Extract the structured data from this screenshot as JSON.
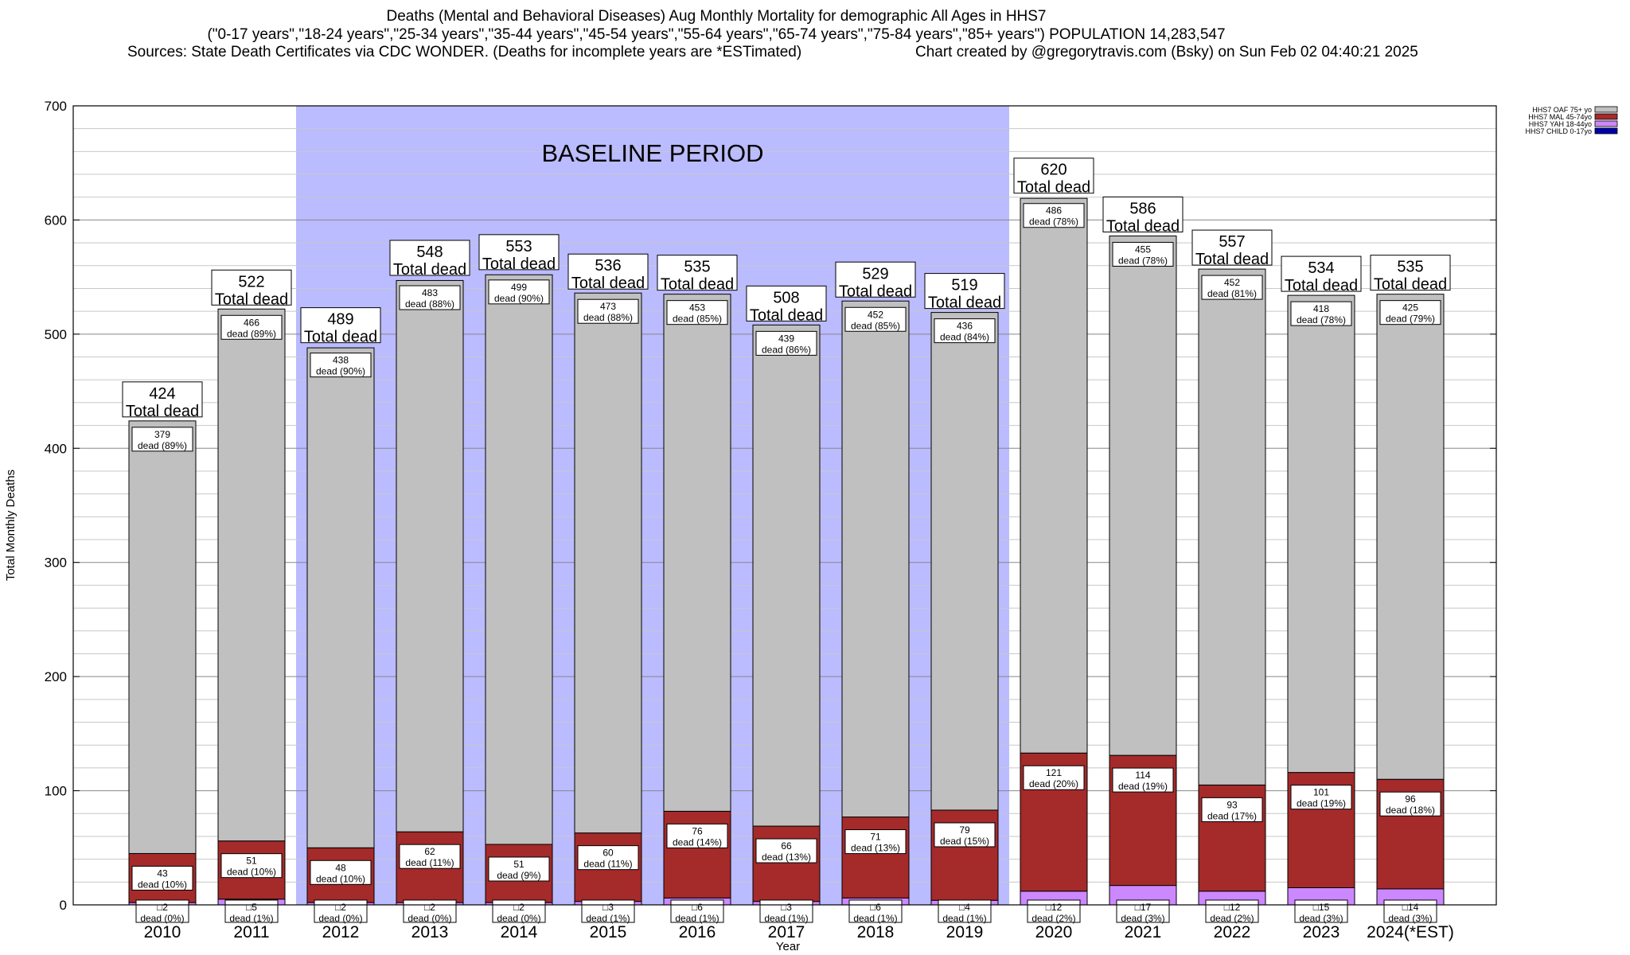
{
  "header": {
    "title": "Deaths (Mental and Behavioral Diseases) Aug Monthly Mortality for demographic All Ages in HHS7",
    "subtitle": "(\"0-17 years\",\"18-24 years\",\"25-34 years\",\"35-44 years\",\"45-54 years\",\"55-64 years\",\"65-74 years\",\"75-84 years\",\"85+ years\") POPULATION 14,283,547",
    "sources": "Sources: State Death Certificates via CDC WONDER. (Deaths for incomplete years are *ESTimated)",
    "created": "Chart created by @gregorytravis.com (Bsky) on Sun Feb 02 04:40:21 2025"
  },
  "chart_data": {
    "type": "bar",
    "stacked": true,
    "xlabel": "Year",
    "ylabel": "Total Monthly Deaths",
    "ylim": [
      0,
      700
    ],
    "yticks": [
      0,
      100,
      200,
      300,
      400,
      500,
      600,
      700
    ],
    "grid": true,
    "legend_position": "top-right",
    "baseline_label": "BASELINE PERIOD",
    "baseline_range": [
      "2012",
      "2019"
    ],
    "total_suffix": "Total dead",
    "dead_prefix": "dead",
    "categories": [
      "2010",
      "2011",
      "2012",
      "2013",
      "2014",
      "2015",
      "2016",
      "2017",
      "2018",
      "2019",
      "2020",
      "2021",
      "2022",
      "2023",
      "2024(*EST)"
    ],
    "totals": [
      424,
      522,
      489,
      548,
      553,
      536,
      535,
      508,
      529,
      519,
      620,
      586,
      557,
      534,
      535
    ],
    "series": [
      {
        "name": "HHS7 CHILD 0-17yo",
        "color": "#0000aa",
        "values": [
          0,
          0,
          0,
          0,
          0,
          0,
          0,
          0,
          0,
          0,
          0,
          0,
          0,
          0,
          0
        ]
      },
      {
        "name": "HHS7 YAH 18-44yo",
        "color": "#cc88ff",
        "values": [
          2,
          5,
          2,
          2,
          2,
          3,
          6,
          3,
          6,
          4,
          12,
          17,
          12,
          15,
          14
        ],
        "percents": [
          "0%",
          "1%",
          "0%",
          "0%",
          "0%",
          "1%",
          "1%",
          "1%",
          "1%",
          "1%",
          "2%",
          "3%",
          "2%",
          "3%",
          "3%"
        ]
      },
      {
        "name": "HHS7 MAL 45-74yo",
        "color": "#a52a2a",
        "values": [
          43,
          51,
          48,
          62,
          51,
          60,
          76,
          66,
          71,
          79,
          121,
          114,
          93,
          101,
          96
        ],
        "percents": [
          "10%",
          "10%",
          "10%",
          "11%",
          "9%",
          "11%",
          "14%",
          "13%",
          "13%",
          "15%",
          "20%",
          "19%",
          "17%",
          "19%",
          "18%"
        ]
      },
      {
        "name": "HHS7 OAF 75+ yo",
        "color": "#c0c0c0",
        "values": [
          379,
          466,
          438,
          483,
          499,
          473,
          453,
          439,
          452,
          436,
          486,
          455,
          452,
          418,
          425
        ],
        "percents": [
          "89%",
          "89%",
          "90%",
          "88%",
          "90%",
          "88%",
          "85%",
          "86%",
          "85%",
          "84%",
          "78%",
          "78%",
          "81%",
          "78%",
          "79%"
        ]
      }
    ]
  }
}
